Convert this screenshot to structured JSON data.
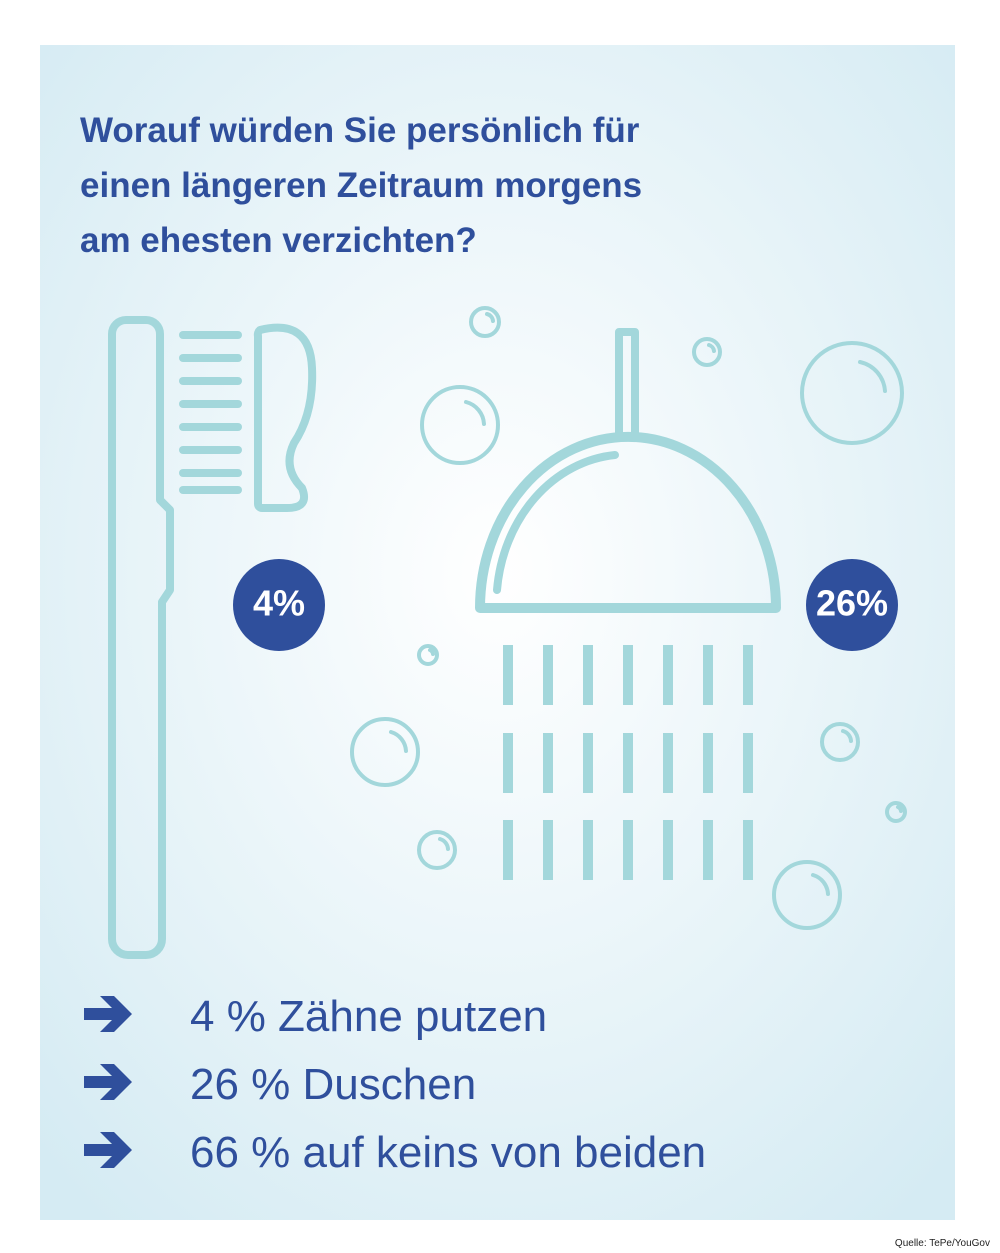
{
  "title": [
    "Worauf würden Sie persönlich für",
    "einen längeren Zeitraum morgens",
    "am ehesten verzichten?"
  ],
  "badges": [
    "4%",
    "26%"
  ],
  "items": [
    "4 % Zähne putzen",
    "26 % Duschen",
    "66 % auf keins von  beiden"
  ],
  "source": "Quelle: TePe/YouGov"
}
